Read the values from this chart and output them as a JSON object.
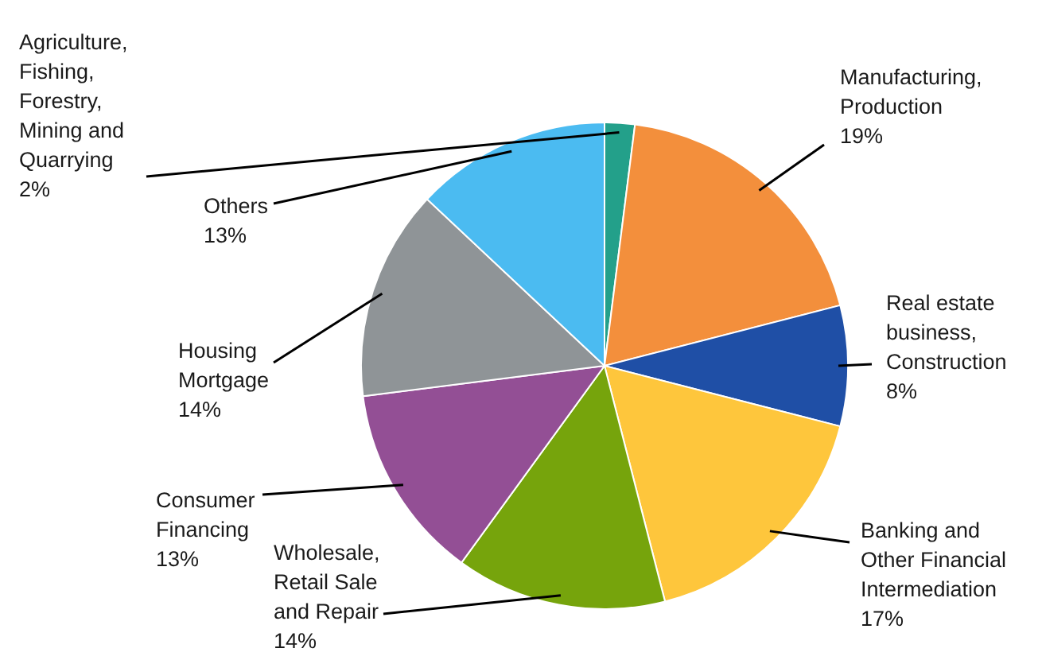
{
  "chart_data": {
    "type": "pie",
    "categories": [
      "Agriculture,\nFishing,\nForestry,\nMining and\nQuarrying",
      "Manufacturing,\nProduction",
      "Real estate\nbusiness,\nConstruction",
      "Banking and\nOther Financial\nIntermediation",
      "Wholesale,\nRetail Sale\nand Repair",
      "Consumer\nFinancing",
      "Housing\nMortgage",
      "Others"
    ],
    "values": [
      2,
      19,
      8,
      17,
      14,
      13,
      14,
      13
    ],
    "value_labels": [
      "2%",
      "19%",
      "8%",
      "17%",
      "14%",
      "13%",
      "14%",
      "13%"
    ],
    "colors": [
      "#23a08a",
      "#f38f3c",
      "#1f4fa6",
      "#fec63c",
      "#76a40c",
      "#934f95",
      "#8f9497",
      "#4bbbf1"
    ]
  }
}
